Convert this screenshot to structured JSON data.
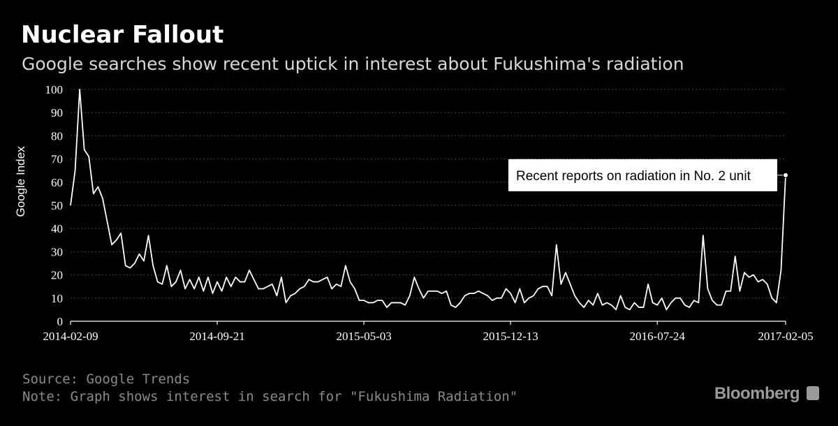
{
  "header": {
    "title": "Nuclear Fallout",
    "subtitle": "Google searches show recent uptick in interest about Fukushima's radiation"
  },
  "footer": {
    "source": "Source: Google Trends",
    "note": "Note: Graph shows interest in search for \"Fukushima Radiation\"",
    "brand": "Bloomberg"
  },
  "colors": {
    "background": "#000000",
    "line": "#ffffff",
    "grid": "#444444",
    "callout_bg": "#ffffff",
    "callout_text": "#000000"
  },
  "chart_data": {
    "type": "line",
    "title": "Nuclear Fallout",
    "ylabel": "Google Index",
    "xlabel": "",
    "ylim": [
      0,
      100
    ],
    "yticks": [
      0,
      10,
      20,
      30,
      40,
      50,
      60,
      70,
      80,
      90,
      100
    ],
    "xticks": [
      "2014-02-09",
      "2014-09-21",
      "2015-05-03",
      "2015-12-13",
      "2016-07-24",
      "2017-02-05"
    ],
    "grid": "horizontal dotted",
    "x_start": "2014-02-09",
    "x_end": "2017-02-05",
    "x_step": "1 week",
    "annotation": {
      "text": "Recent reports on radiation in No. 2 unit",
      "date": "2017-02-05",
      "value": 63
    },
    "series": [
      {
        "values": [
          50,
          65,
          100,
          74,
          71,
          55,
          58,
          53,
          43,
          33,
          35,
          38,
          24,
          23,
          25,
          29,
          26,
          37,
          24,
          17,
          16,
          24,
          15,
          17,
          22,
          14,
          18,
          14,
          19,
          13,
          19,
          12,
          17,
          13,
          19,
          15,
          19,
          17,
          17,
          22,
          18,
          14,
          14,
          15,
          16,
          11,
          19,
          8,
          11,
          12,
          14,
          15,
          18,
          17,
          17,
          18,
          19,
          14,
          16,
          15,
          24,
          17,
          14,
          9,
          9,
          8,
          8,
          9,
          9,
          6,
          8,
          8,
          8,
          7,
          11,
          19,
          14,
          10,
          13,
          13,
          13,
          12,
          13,
          7,
          6,
          8,
          11,
          12,
          12,
          13,
          12,
          11,
          9,
          10,
          10,
          14,
          12,
          8,
          14,
          8,
          10,
          11,
          14,
          15,
          15,
          11,
          33,
          16,
          21,
          16,
          11,
          8,
          6,
          9,
          7,
          12,
          7,
          8,
          7,
          5,
          11,
          6,
          5,
          8,
          6,
          6,
          16,
          8,
          7,
          10,
          5,
          8,
          10,
          10,
          7,
          6,
          9,
          8,
          37,
          14,
          9,
          7,
          7,
          13,
          13,
          28,
          13,
          21,
          19,
          20,
          17,
          18,
          16,
          10,
          8,
          22,
          63
        ]
      }
    ]
  }
}
